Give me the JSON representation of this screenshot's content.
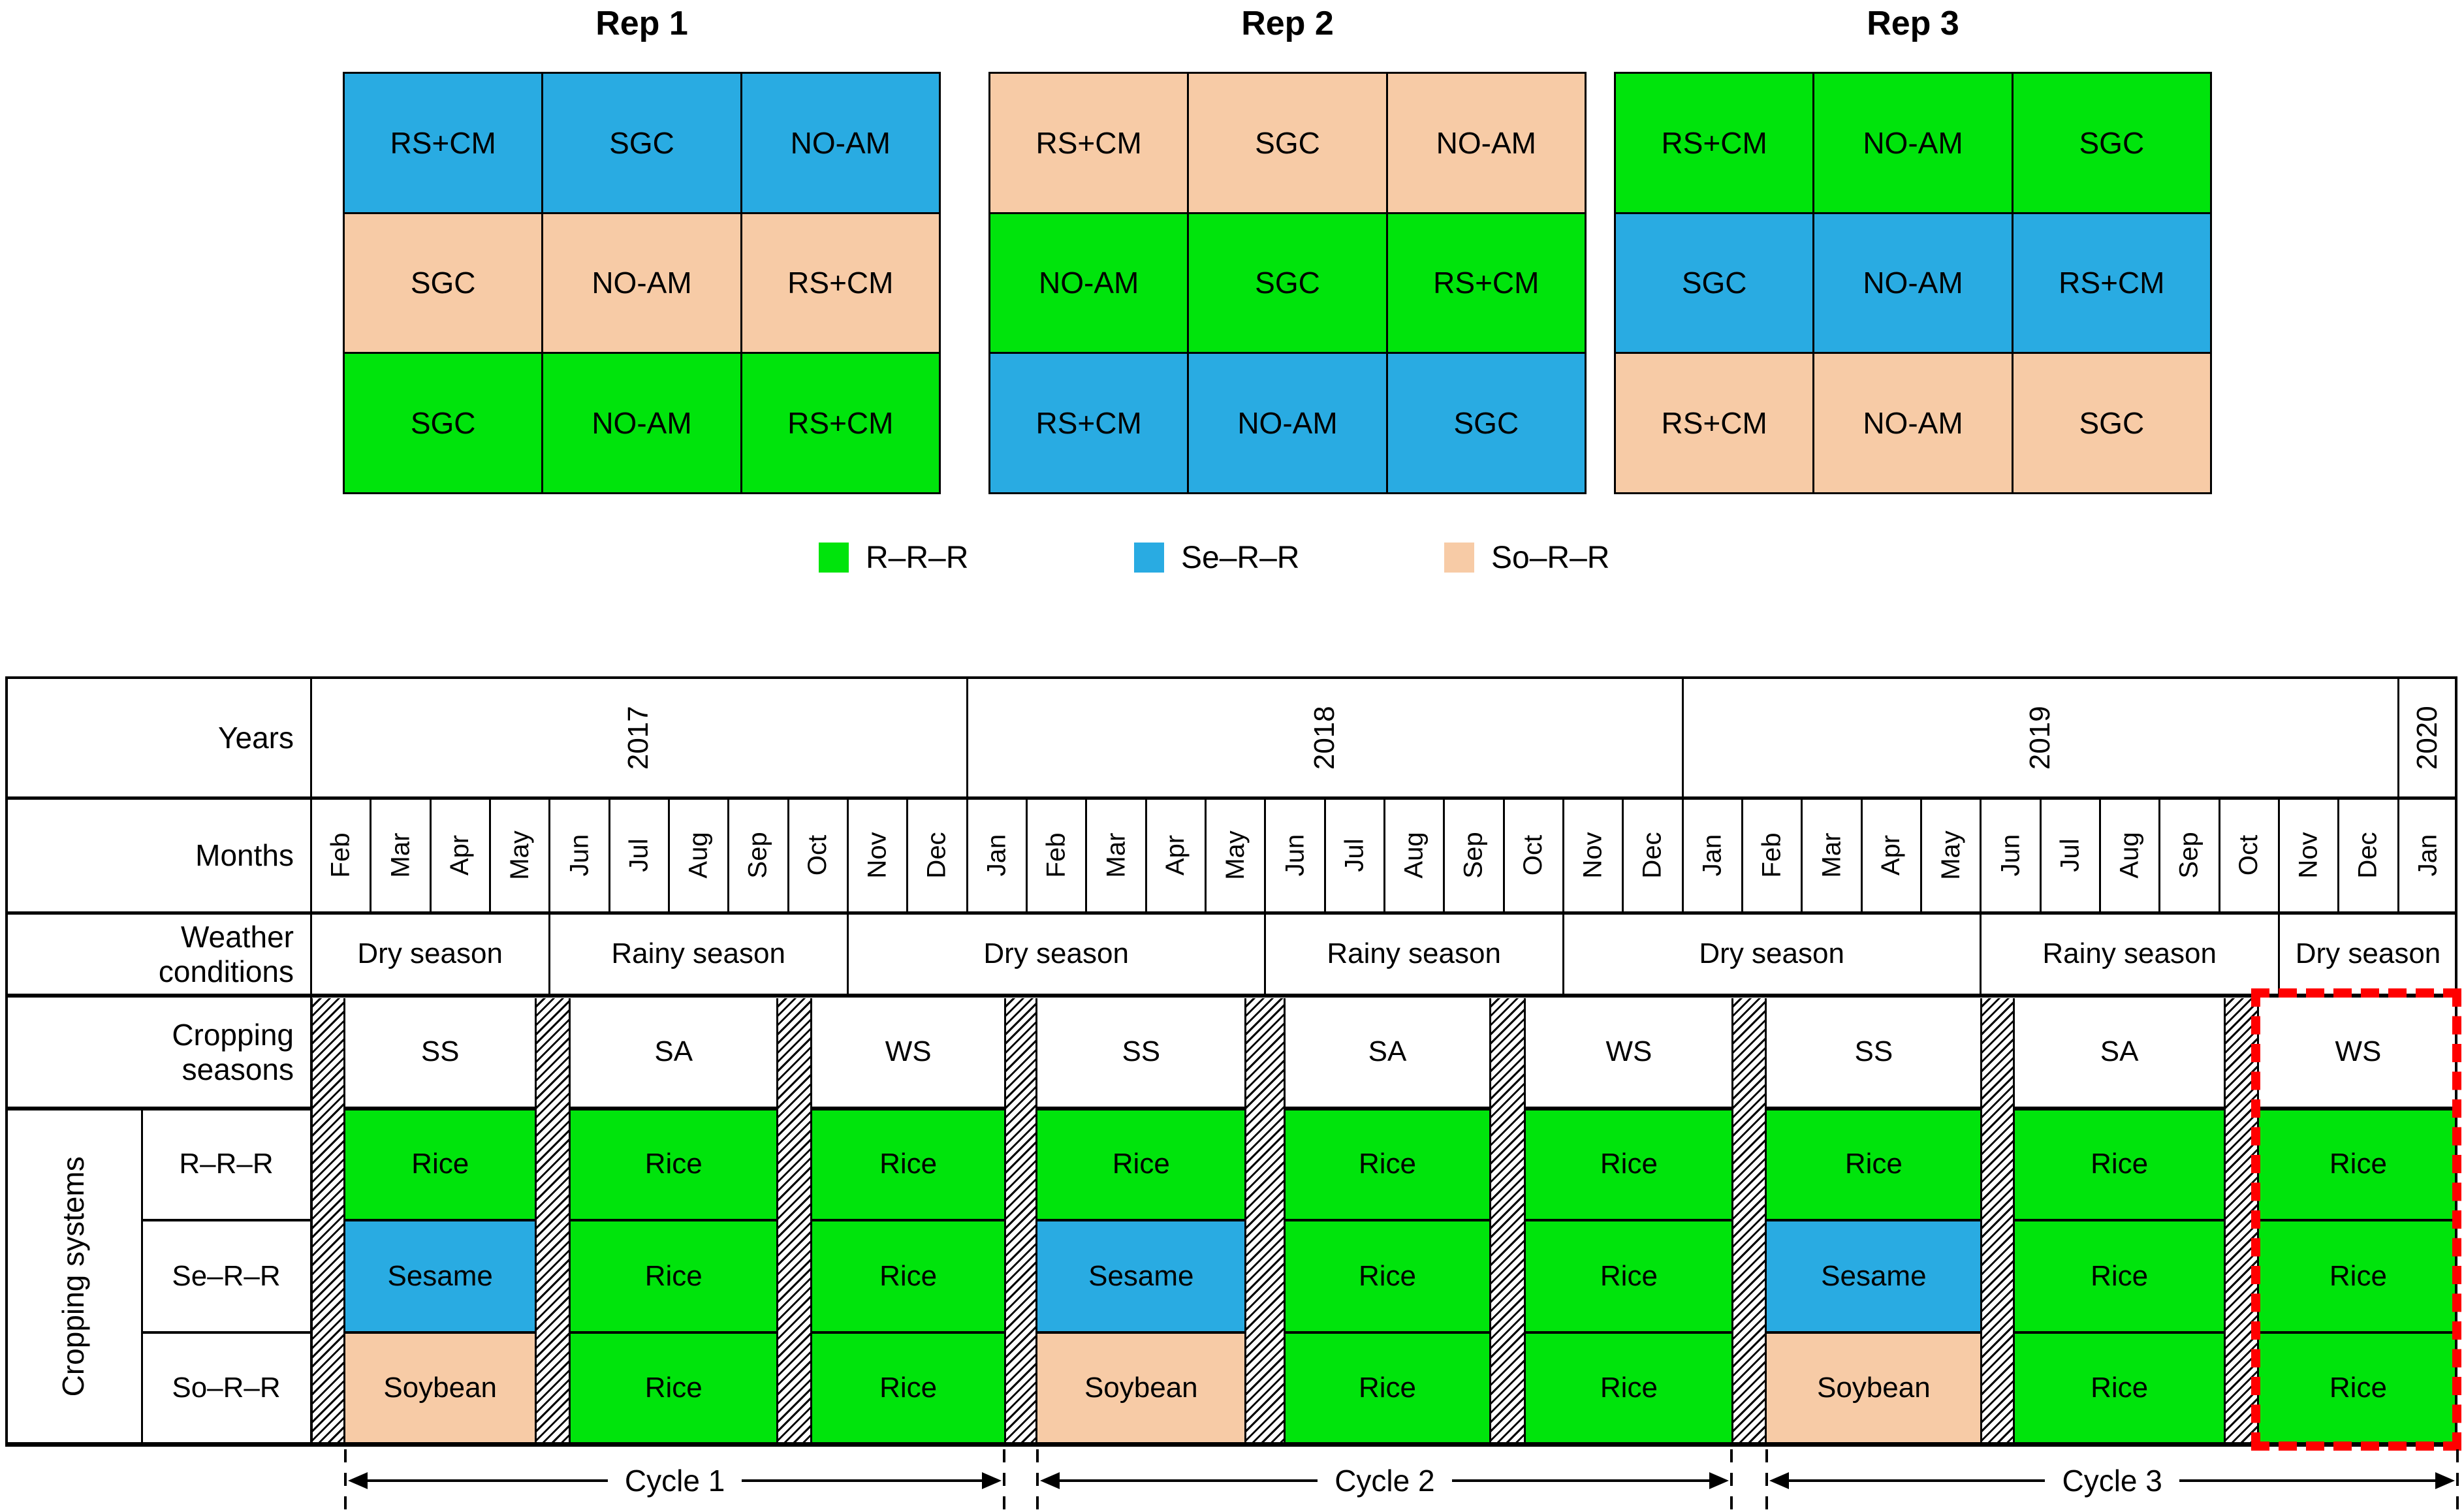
{
  "colors": {
    "r": "#00E40C",
    "se": "#29ABE2",
    "so": "#F7CBA6",
    "highlight": "#FF0000",
    "line": "#000000"
  },
  "reps": [
    {
      "title": "Rep 1",
      "rows": [
        {
          "color_key": "se",
          "cells": [
            "RS+CM",
            "SGC",
            "NO-AM"
          ]
        },
        {
          "color_key": "so",
          "cells": [
            "SGC",
            "NO-AM",
            "RS+CM"
          ]
        },
        {
          "color_key": "r",
          "cells": [
            "SGC",
            "NO-AM",
            "RS+CM"
          ]
        }
      ]
    },
    {
      "title": "Rep 2",
      "rows": [
        {
          "color_key": "so",
          "cells": [
            "RS+CM",
            "SGC",
            "NO-AM"
          ]
        },
        {
          "color_key": "r",
          "cells": [
            "NO-AM",
            "SGC",
            "RS+CM"
          ]
        },
        {
          "color_key": "se",
          "cells": [
            "RS+CM",
            "NO-AM",
            "SGC"
          ]
        }
      ]
    },
    {
      "title": "Rep 3",
      "rows": [
        {
          "color_key": "r",
          "cells": [
            "RS+CM",
            "NO-AM",
            "SGC"
          ]
        },
        {
          "color_key": "se",
          "cells": [
            "SGC",
            "NO-AM",
            "RS+CM"
          ]
        },
        {
          "color_key": "so",
          "cells": [
            "RS+CM",
            "NO-AM",
            "SGC"
          ]
        }
      ]
    }
  ],
  "legend": [
    {
      "color_key": "r",
      "label": "R–R–R"
    },
    {
      "color_key": "se",
      "label": "Se–R–R"
    },
    {
      "color_key": "so",
      "label": "So–R–R"
    }
  ],
  "timeline": {
    "row_labels": {
      "years": "Years",
      "months": "Months",
      "weather": "Weather\nconditions",
      "seasons": "Cropping\nseasons",
      "systems": "Cropping systems"
    },
    "years": [
      {
        "label": "2017",
        "start": 0,
        "end": 11
      },
      {
        "label": "2018",
        "start": 11,
        "end": 23
      },
      {
        "label": "2019",
        "start": 23,
        "end": 35
      },
      {
        "label": "2020",
        "start": 35,
        "end": 36
      }
    ],
    "months": [
      "Feb",
      "Mar",
      "Apr",
      "May",
      "Jun",
      "Jul",
      "Aug",
      "Sep",
      "Oct",
      "Nov",
      "Dec",
      "Jan",
      "Feb",
      "Mar",
      "Apr",
      "May",
      "Jun",
      "Jul",
      "Aug",
      "Sep",
      "Oct",
      "Nov",
      "Dec",
      "Jan",
      "Feb",
      "Mar",
      "Apr",
      "May",
      "Jun",
      "Jul",
      "Aug",
      "Sep",
      "Oct",
      "Nov",
      "Dec",
      "Jan"
    ],
    "weather": [
      {
        "label": "Dry season",
        "start": 0,
        "end": 4
      },
      {
        "label": "Rainy season",
        "start": 4,
        "end": 9
      },
      {
        "label": "Dry season",
        "start": 9,
        "end": 16
      },
      {
        "label": "Rainy season",
        "start": 16,
        "end": 21
      },
      {
        "label": "Dry season",
        "start": 21,
        "end": 28
      },
      {
        "label": "Rainy season",
        "start": 28,
        "end": 33
      },
      {
        "label": "Dry season",
        "start": 33,
        "end": 36
      }
    ],
    "seasons": [
      {
        "label": "SS",
        "start": 0.58,
        "end": 3.76
      },
      {
        "label": "SA",
        "start": 4.36,
        "end": 7.81
      },
      {
        "label": "WS",
        "start": 8.41,
        "end": 11.63
      },
      {
        "label": "SS",
        "start": 12.19,
        "end": 15.66
      },
      {
        "label": "SA",
        "start": 16.35,
        "end": 19.76
      },
      {
        "label": "WS",
        "start": 20.38,
        "end": 23.83
      },
      {
        "label": "SS",
        "start": 24.42,
        "end": 28.0
      },
      {
        "label": "SA",
        "start": 28.58,
        "end": 32.08
      },
      {
        "label": "WS",
        "start": 32.67,
        "end": 36.0
      }
    ],
    "hatches": [
      [
        0,
        0.58
      ],
      [
        3.76,
        4.36
      ],
      [
        7.81,
        8.41
      ],
      [
        11.63,
        12.19
      ],
      [
        15.66,
        16.35
      ],
      [
        19.76,
        20.38
      ],
      [
        23.83,
        24.42
      ],
      [
        28.0,
        28.58
      ],
      [
        32.08,
        32.67
      ]
    ],
    "systems": [
      {
        "label": "R–R–R",
        "crops": [
          "Rice",
          "Rice",
          "Rice",
          "Rice",
          "Rice",
          "Rice",
          "Rice",
          "Rice",
          "Rice"
        ]
      },
      {
        "label": "Se–R–R",
        "crops": [
          "Sesame",
          "Rice",
          "Rice",
          "Sesame",
          "Rice",
          "Rice",
          "Sesame",
          "Rice",
          "Rice"
        ]
      },
      {
        "label": "So–R–R",
        "crops": [
          "Soybean",
          "Rice",
          "Rice",
          "Soybean",
          "Rice",
          "Rice",
          "Soybean",
          "Rice",
          "Rice"
        ]
      }
    ],
    "crop_colors": {
      "Rice": "r",
      "Sesame": "se",
      "Soybean": "so"
    },
    "cycles": [
      {
        "label": "Cycle 1",
        "start": 0.58,
        "end": 11.63
      },
      {
        "label": "Cycle 2",
        "start": 12.19,
        "end": 23.83
      },
      {
        "label": "Cycle 3",
        "start": 24.42,
        "end": 36.0
      }
    ],
    "highlight_season_index": 8
  }
}
